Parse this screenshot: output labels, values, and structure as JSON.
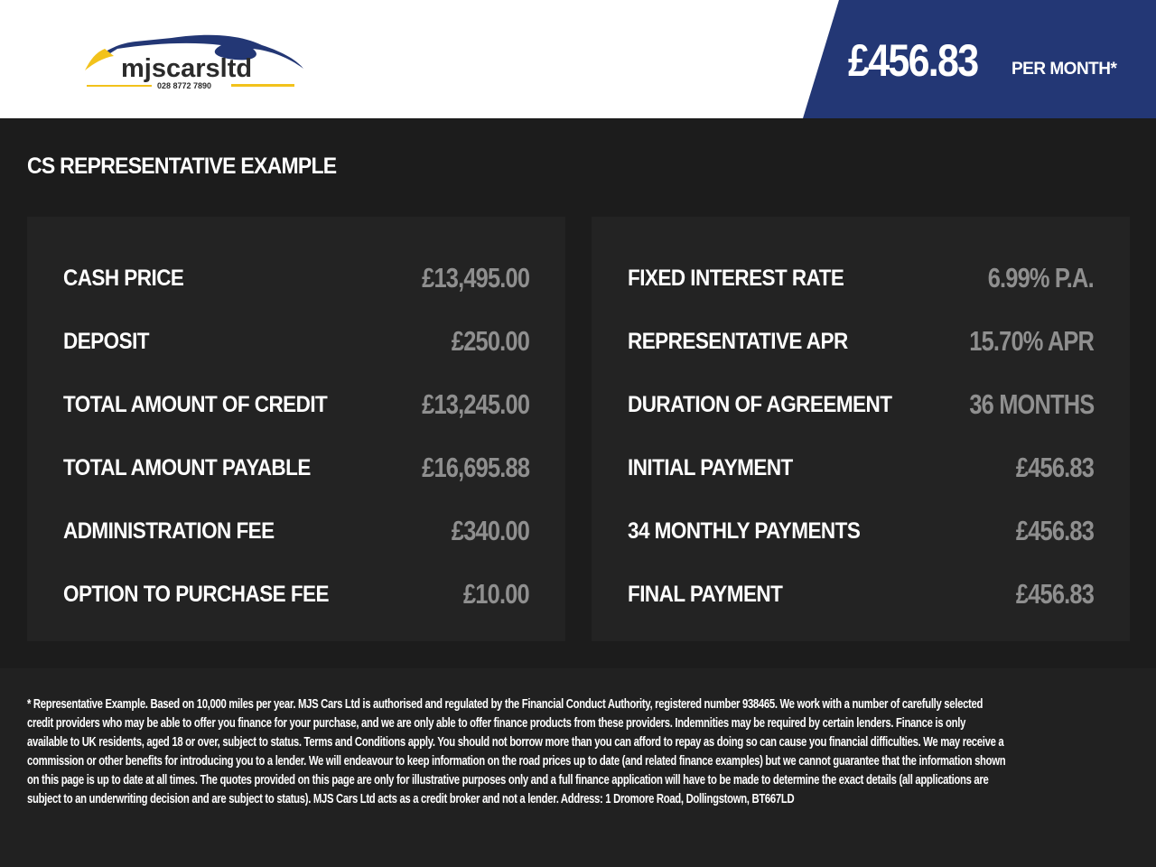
{
  "header": {
    "logo": {
      "brand": "mjscarsltd",
      "phone": "028 8772 7890"
    },
    "monthly_price": "£456.83",
    "per_month_label": "PER MONTH*",
    "brand_color": "#233775",
    "accent_color": "#f2c21b"
  },
  "title": "CS REPRESENTATIVE EXAMPLE",
  "left_panel": [
    {
      "label": "CASH PRICE",
      "value": "£13,495.00"
    },
    {
      "label": "DEPOSIT",
      "value": "£250.00"
    },
    {
      "label": "TOTAL AMOUNT OF CREDIT",
      "value": "£13,245.00"
    },
    {
      "label": "TOTAL AMOUNT PAYABLE",
      "value": "£16,695.88"
    },
    {
      "label": "ADMINISTRATION FEE",
      "value": "£340.00"
    },
    {
      "label": "OPTION TO PURCHASE FEE",
      "value": "£10.00"
    }
  ],
  "right_panel": [
    {
      "label": "FIXED INTEREST RATE",
      "value": "6.99% P.A."
    },
    {
      "label": "REPRESENTATIVE APR",
      "value": "15.70% APR"
    },
    {
      "label": "DURATION OF AGREEMENT",
      "value": "36 MONTHS"
    },
    {
      "label": "INITIAL PAYMENT",
      "value": "£456.83"
    },
    {
      "label": "34 MONTHLY PAYMENTS",
      "value": "£456.83"
    },
    {
      "label": "FINAL PAYMENT",
      "value": "£456.83"
    }
  ],
  "disclaimer": "* Representative Example. Based on 10,000 miles per year. MJS Cars Ltd is authorised and regulated by the Financial Conduct Authority, registered number 938465. We work with a number of carefully selected credit providers who may be able to offer you finance for your purchase, and we are only able to offer finance products from these providers. Indemnities may be required by certain lenders. Finance is only available to UK residents, aged 18 or over, subject to status. Terms and Conditions apply. You should not borrow more than you can afford to repay as doing so can cause you financial difficulties. We may receive a commission or other benefits for introducing you to a lender. We will endeavour to keep information on the road prices up to date (and related finance examples) but we cannot guarantee that the information shown on this page is up to date at all times. The quotes provided on this page are only for illustrative purposes only and a full finance application will have to be made to determine the exact details (all applications are subject to an underwriting decision and are subject to status). MJS Cars Ltd acts as a credit broker and not a lender. Address: 1 Dromore Road, Dollingstown, BT667LD"
}
